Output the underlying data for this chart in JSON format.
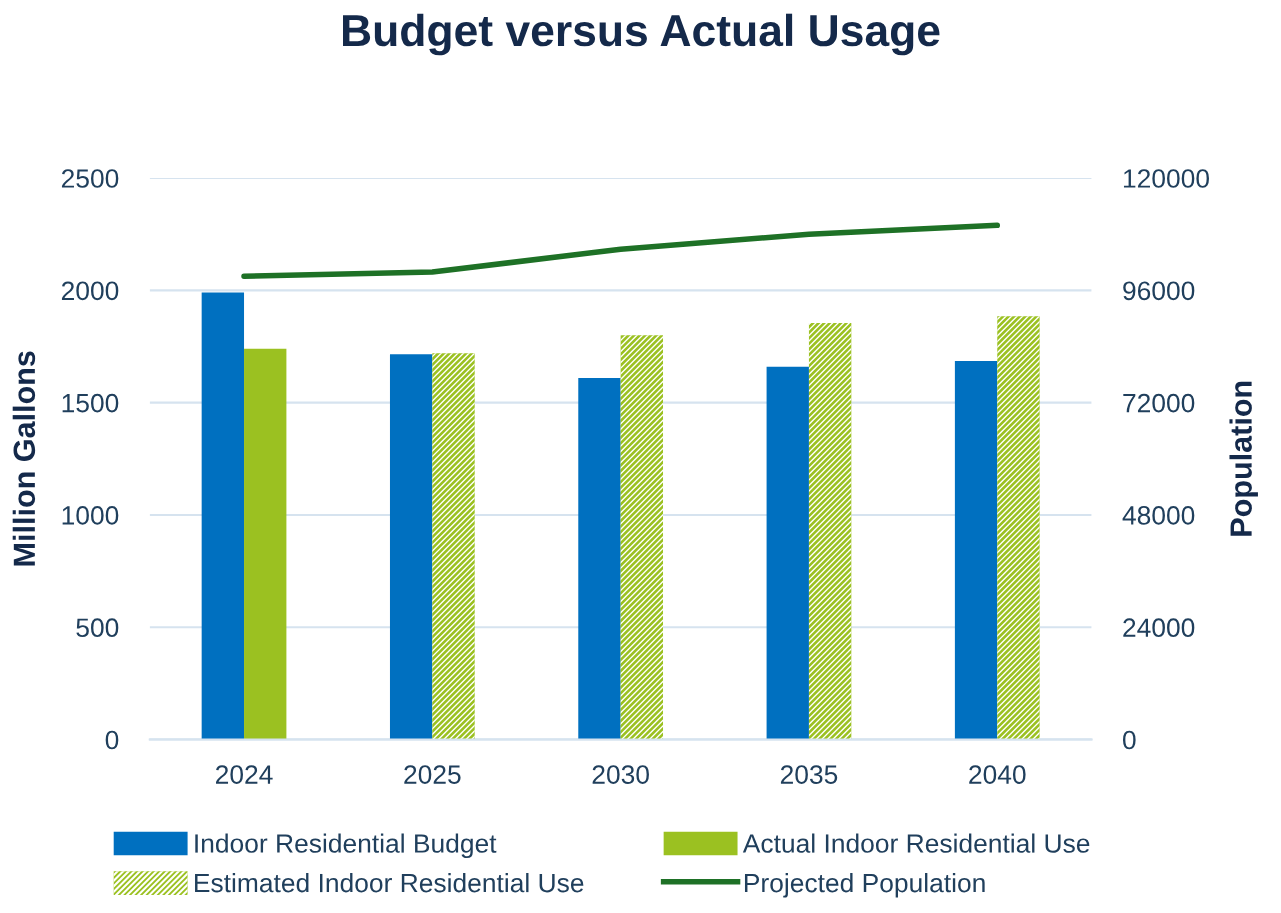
{
  "chart_data": {
    "type": "bar",
    "title": "Budget versus Actual Usage",
    "ylabel": "Million Gallons",
    "y2label": "Population",
    "categories": [
      "2024",
      "2025",
      "2030",
      "2035",
      "2040"
    ],
    "series": [
      {
        "name": "Indoor Residential Budget",
        "color": "#0070c0",
        "values": [
          1990,
          1715,
          1610,
          1660,
          1685
        ]
      },
      {
        "name": "Actual Indoor Residential Use",
        "color": "#9bc121",
        "values": [
          1740,
          null,
          null,
          null,
          null
        ]
      },
      {
        "name": "Estimated Indoor Residential Use",
        "color": "#9bc121",
        "line_style": "dashed",
        "values": [
          null,
          1720,
          1800,
          1855,
          1885
        ]
      },
      {
        "name": "Projected Population",
        "type": "line",
        "axis": "y2",
        "color": "#1e7126",
        "values": [
          99000,
          99900,
          104800,
          108000,
          109900
        ]
      }
    ],
    "ylim": [
      0,
      2500
    ],
    "yticks": [
      0,
      500,
      1000,
      1500,
      2000,
      2500
    ],
    "y2lim": [
      0,
      120000
    ],
    "y2ticks": [
      0,
      24000,
      48000,
      72000,
      96000,
      120000
    ],
    "grid": "y",
    "legend": "bottom"
  }
}
